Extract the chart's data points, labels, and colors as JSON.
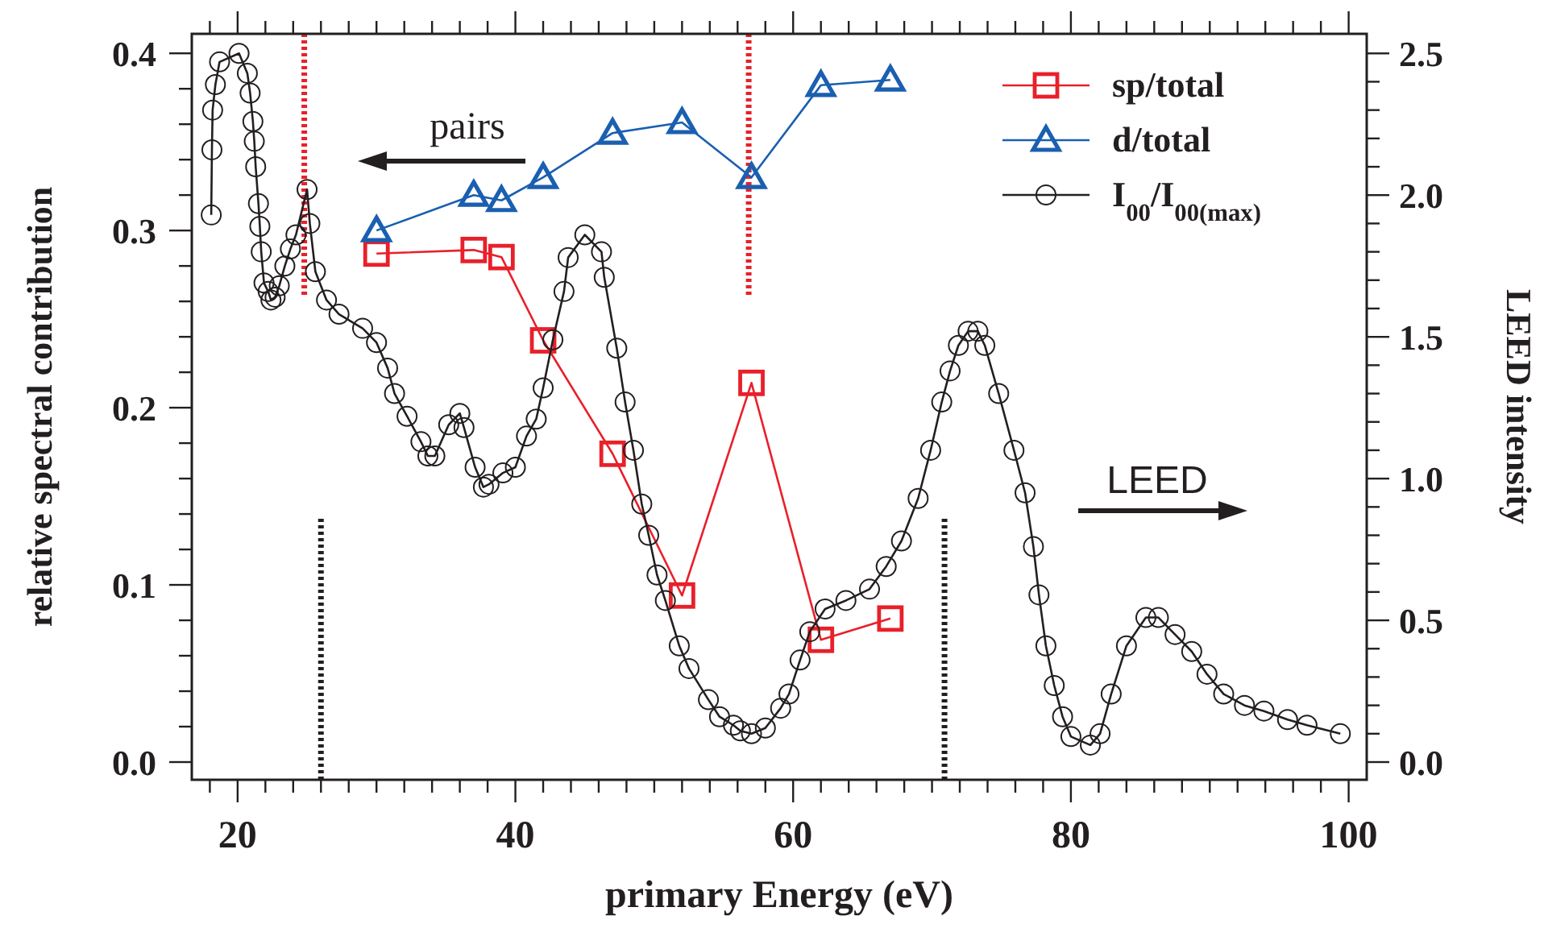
{
  "chart_data": {
    "type": "line",
    "xlabel": "primary Energy (eV)",
    "ylabel": "relative spectral contribution",
    "y2label": "LEED intensity",
    "xlim": [
      16.7,
      101.3
    ],
    "ylim": [
      -0.01,
      0.411
    ],
    "y2lim": [
      -0.0625,
      2.569
    ],
    "xticks": [
      {
        "value": 18,
        "label": null
      },
      20,
      {
        "value": 22,
        "label": null
      },
      {
        "value": 24,
        "label": null
      },
      {
        "value": 26,
        "label": null
      },
      {
        "value": 28,
        "label": null
      },
      {
        "value": 30,
        "label": null
      },
      {
        "value": 32,
        "label": null
      },
      {
        "value": 34,
        "label": null
      },
      {
        "value": 36,
        "label": null
      },
      {
        "value": 38,
        "label": null
      },
      40,
      {
        "value": 42,
        "label": null
      },
      {
        "value": 44,
        "label": null
      },
      {
        "value": 46,
        "label": null
      },
      {
        "value": 48,
        "label": null
      },
      {
        "value": 50,
        "label": null
      },
      {
        "value": 52,
        "label": null
      },
      {
        "value": 54,
        "label": null
      },
      {
        "value": 56,
        "label": null
      },
      {
        "value": 58,
        "label": null
      },
      60,
      {
        "value": 62,
        "label": null
      },
      {
        "value": 64,
        "label": null
      },
      {
        "value": 66,
        "label": null
      },
      {
        "value": 68,
        "label": null
      },
      {
        "value": 70,
        "label": null
      },
      {
        "value": 72,
        "label": null
      },
      {
        "value": 74,
        "label": null
      },
      {
        "value": 76,
        "label": null
      },
      {
        "value": 78,
        "label": null
      },
      80,
      {
        "value": 82,
        "label": null
      },
      {
        "value": 84,
        "label": null
      },
      {
        "value": 86,
        "label": null
      },
      {
        "value": 88,
        "label": null
      },
      {
        "value": 90,
        "label": null
      },
      {
        "value": 92,
        "label": null
      },
      {
        "value": 94,
        "label": null
      },
      {
        "value": 96,
        "label": null
      },
      {
        "value": 98,
        "label": null
      },
      100
    ],
    "yticks": [
      {
        "value": 0,
        "label": "0.0"
      },
      {
        "value": 0.02,
        "label": null
      },
      {
        "value": 0.04,
        "label": null
      },
      {
        "value": 0.06,
        "label": null
      },
      {
        "value": 0.08,
        "label": null
      },
      {
        "value": 0.1,
        "label": "0.1"
      },
      {
        "value": 0.12,
        "label": null
      },
      {
        "value": 0.14,
        "label": null
      },
      {
        "value": 0.16,
        "label": null
      },
      {
        "value": 0.18,
        "label": null
      },
      {
        "value": 0.2,
        "label": "0.2"
      },
      {
        "value": 0.22,
        "label": null
      },
      {
        "value": 0.24,
        "label": null
      },
      {
        "value": 0.26,
        "label": null
      },
      {
        "value": 0.28,
        "label": null
      },
      {
        "value": 0.3,
        "label": "0.3"
      },
      {
        "value": 0.32,
        "label": null
      },
      {
        "value": 0.34,
        "label": null
      },
      {
        "value": 0.36,
        "label": null
      },
      {
        "value": 0.38,
        "label": null
      },
      {
        "value": 0.4,
        "label": "0.4"
      }
    ],
    "y2ticks": [
      {
        "value": 0,
        "label": "0.0"
      },
      {
        "value": 0.1,
        "label": null
      },
      {
        "value": 0.2,
        "label": null
      },
      {
        "value": 0.3,
        "label": null
      },
      {
        "value": 0.4,
        "label": null
      },
      {
        "value": 0.5,
        "label": "0.5"
      },
      {
        "value": 0.6,
        "label": null
      },
      {
        "value": 0.7,
        "label": null
      },
      {
        "value": 0.8,
        "label": null
      },
      {
        "value": 0.9,
        "label": null
      },
      {
        "value": 1.0,
        "label": "1.0"
      },
      {
        "value": 1.1,
        "label": null
      },
      {
        "value": 1.2,
        "label": null
      },
      {
        "value": 1.3,
        "label": null
      },
      {
        "value": 1.4,
        "label": null
      },
      {
        "value": 1.5,
        "label": "1.5"
      },
      {
        "value": 1.6,
        "label": null
      },
      {
        "value": 1.7,
        "label": null
      },
      {
        "value": 1.8,
        "label": null
      },
      {
        "value": 1.9,
        "label": null
      },
      {
        "value": 2.0,
        "label": "2.0"
      },
      {
        "value": 2.1,
        "label": null
      },
      {
        "value": 2.2,
        "label": null
      },
      {
        "value": 2.3,
        "label": null
      },
      {
        "value": 2.4,
        "label": null
      },
      {
        "value": 2.5,
        "label": "2.5"
      }
    ],
    "legend": "top right",
    "series": [
      {
        "name": "sp/total",
        "color": "#e8202a",
        "marker": "square",
        "x": [
          30,
          37,
          39,
          42,
          47,
          52,
          57,
          62,
          67
        ],
        "values": [
          0.287,
          0.289,
          0.285,
          0.238,
          0.174,
          0.094,
          0.214,
          0.069,
          0.081
        ]
      },
      {
        "name": "d/total",
        "color": "#1a5fb0",
        "marker": "triangle",
        "x": [
          30,
          37,
          39,
          42,
          47,
          52,
          57,
          62,
          67
        ],
        "values": [
          0.3,
          0.32,
          0.317,
          0.33,
          0.355,
          0.361,
          0.33,
          0.382,
          0.385
        ]
      },
      {
        "name": "I$_{00}$/I$_{00(max)}$",
        "color": "#231f20",
        "marker": "circle",
        "axis": "y2",
        "x": [
          18.1,
          18.15,
          18.2,
          18.4,
          18.7,
          20.1,
          20.7,
          20.9,
          21.1,
          21.2,
          21.3,
          21.5,
          21.6,
          21.7,
          21.9,
          22.2,
          22.4,
          22.7,
          23.0,
          23.4,
          23.8,
          24.2,
          25.0,
          25.2,
          25.6,
          26.4,
          27.3,
          29.0,
          30.0,
          30.8,
          31.3,
          32.2,
          33.2,
          33.7,
          34.2,
          35.2,
          36.0,
          36.3,
          37.1,
          37.7,
          38.1,
          39.1,
          40.0,
          40.8,
          41.5,
          42.0,
          42.7,
          43.5,
          43.8,
          45.0,
          46.2,
          46.4,
          47.3,
          47.9,
          48.5,
          49.1,
          49.6,
          50.2,
          50.8,
          51.8,
          52.5,
          53.9,
          54.7,
          55.7,
          56.2,
          57.0,
          58.0,
          59.1,
          59.7,
          60.5,
          61.2,
          62.3,
          63.8,
          65.5,
          66.7,
          67.8,
          69.0,
          69.9,
          70.7,
          71.3,
          71.9,
          72.6,
          73.3,
          73.8,
          74.8,
          75.9,
          76.7,
          77.3,
          77.7,
          78.2,
          78.8,
          79.4,
          80.0,
          81.4,
          82.1,
          82.9,
          84.0,
          85.4,
          86.3,
          87.5,
          88.7,
          89.8,
          91.0,
          92.5,
          93.9,
          95.6,
          97.0,
          99.4
        ],
        "values": [
          1.93,
          2.16,
          2.3,
          2.39,
          2.47,
          2.5,
          2.43,
          2.36,
          2.26,
          2.19,
          2.1,
          1.97,
          1.89,
          1.8,
          1.69,
          1.66,
          1.63,
          1.64,
          1.68,
          1.75,
          1.81,
          1.86,
          2.02,
          1.9,
          1.73,
          1.63,
          1.58,
          1.53,
          1.48,
          1.39,
          1.3,
          1.22,
          1.13,
          1.08,
          1.08,
          1.19,
          1.23,
          1.18,
          1.04,
          0.97,
          0.98,
          1.02,
          1.04,
          1.15,
          1.21,
          1.32,
          1.49,
          1.66,
          1.78,
          1.86,
          1.8,
          1.71,
          1.46,
          1.27,
          1.1,
          0.91,
          0.8,
          0.66,
          0.57,
          0.41,
          0.33,
          0.22,
          0.16,
          0.13,
          0.11,
          0.1,
          0.12,
          0.19,
          0.24,
          0.36,
          0.46,
          0.54,
          0.57,
          0.61,
          0.69,
          0.78,
          0.93,
          1.1,
          1.27,
          1.38,
          1.47,
          1.52,
          1.52,
          1.47,
          1.3,
          1.1,
          0.95,
          0.76,
          0.59,
          0.41,
          0.27,
          0.16,
          0.09,
          0.06,
          0.1,
          0.24,
          0.41,
          0.51,
          0.51,
          0.45,
          0.39,
          0.31,
          0.24,
          0.2,
          0.18,
          0.15,
          0.13,
          0.1
        ]
      }
    ],
    "ref_lines": [
      {
        "axis": "x",
        "value": 24.8,
        "color": "#e8202a",
        "line_style": "dotted",
        "label": null
      },
      {
        "axis": "x",
        "value": 56.8,
        "color": "#e8202a",
        "line_style": "dotted",
        "label": null
      },
      {
        "axis": "x",
        "value": 26.0,
        "color": "#231f20",
        "line_style": "dotted",
        "label": null
      },
      {
        "axis": "x",
        "value": 70.9,
        "color": "#231f20",
        "line_style": "dotted",
        "label": null
      }
    ],
    "annotations": [
      "pairs",
      "LEED"
    ]
  }
}
